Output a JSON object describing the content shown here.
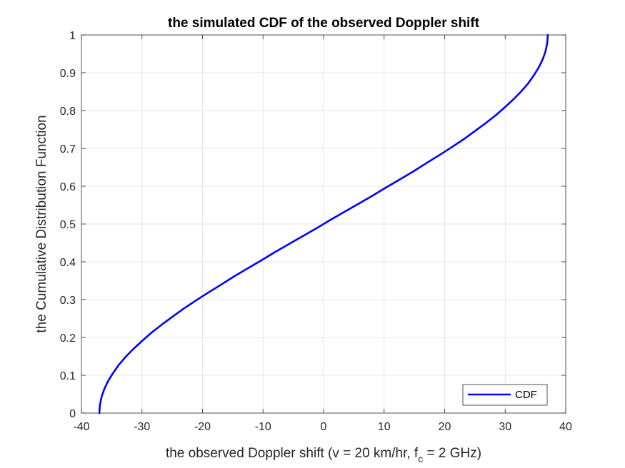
{
  "chart_data": {
    "type": "line",
    "title": "the simulated CDF of the observed Doppler shift",
    "xlabel": {
      "prefix": "the observed Doppler shift (v = 20 km/hr, f",
      "subscript": "c",
      "suffix": " = 2 GHz)"
    },
    "ylabel": "the Cumulative Distribution Function",
    "xlim": [
      -40,
      40
    ],
    "ylim": [
      0,
      1
    ],
    "xticks": [
      -40,
      -30,
      -20,
      -10,
      0,
      10,
      20,
      30,
      40
    ],
    "yticks": [
      0,
      0.1,
      0.2,
      0.3,
      0.4,
      0.5,
      0.6,
      0.7,
      0.8,
      0.9,
      1
    ],
    "xtick_labels": [
      "-40",
      "-30",
      "-20",
      "-10",
      "0",
      "10",
      "20",
      "30",
      "40"
    ],
    "ytick_labels": [
      "0",
      "0.1",
      "0.2",
      "0.3",
      "0.4",
      "0.5",
      "0.6",
      "0.7",
      "0.8",
      "0.9",
      "1"
    ],
    "grid": true,
    "legend_position": "bottom-right",
    "series": [
      {
        "name": "CDF",
        "color": "#0000ff",
        "x": [
          -37.04,
          -36.95,
          -36.67,
          -36.21,
          -35.58,
          -34.77,
          -33.8,
          -32.67,
          -31.39,
          -29.96,
          -28.4,
          -26.72,
          -24.93,
          -23.04,
          -21.06,
          -19.01,
          -16.89,
          -14.72,
          -12.5,
          -10.26,
          -8.0,
          -5.73,
          -3.44,
          -1.15,
          1.15,
          3.44,
          5.73,
          8.0,
          10.26,
          12.5,
          14.72,
          16.89,
          19.01,
          21.06,
          23.04,
          24.93,
          26.72,
          28.4,
          29.96,
          31.39,
          32.67,
          33.8,
          34.77,
          35.58,
          36.21,
          36.67,
          36.95,
          37.04
        ],
        "y": [
          0.0,
          0.021,
          0.043,
          0.064,
          0.085,
          0.106,
          0.128,
          0.149,
          0.17,
          0.191,
          0.213,
          0.234,
          0.255,
          0.277,
          0.298,
          0.319,
          0.34,
          0.362,
          0.383,
          0.404,
          0.426,
          0.447,
          0.468,
          0.489,
          0.511,
          0.532,
          0.553,
          0.574,
          0.596,
          0.617,
          0.638,
          0.66,
          0.681,
          0.702,
          0.723,
          0.745,
          0.766,
          0.787,
          0.809,
          0.83,
          0.851,
          0.872,
          0.894,
          0.915,
          0.936,
          0.957,
          0.979,
          1.0
        ]
      }
    ]
  }
}
